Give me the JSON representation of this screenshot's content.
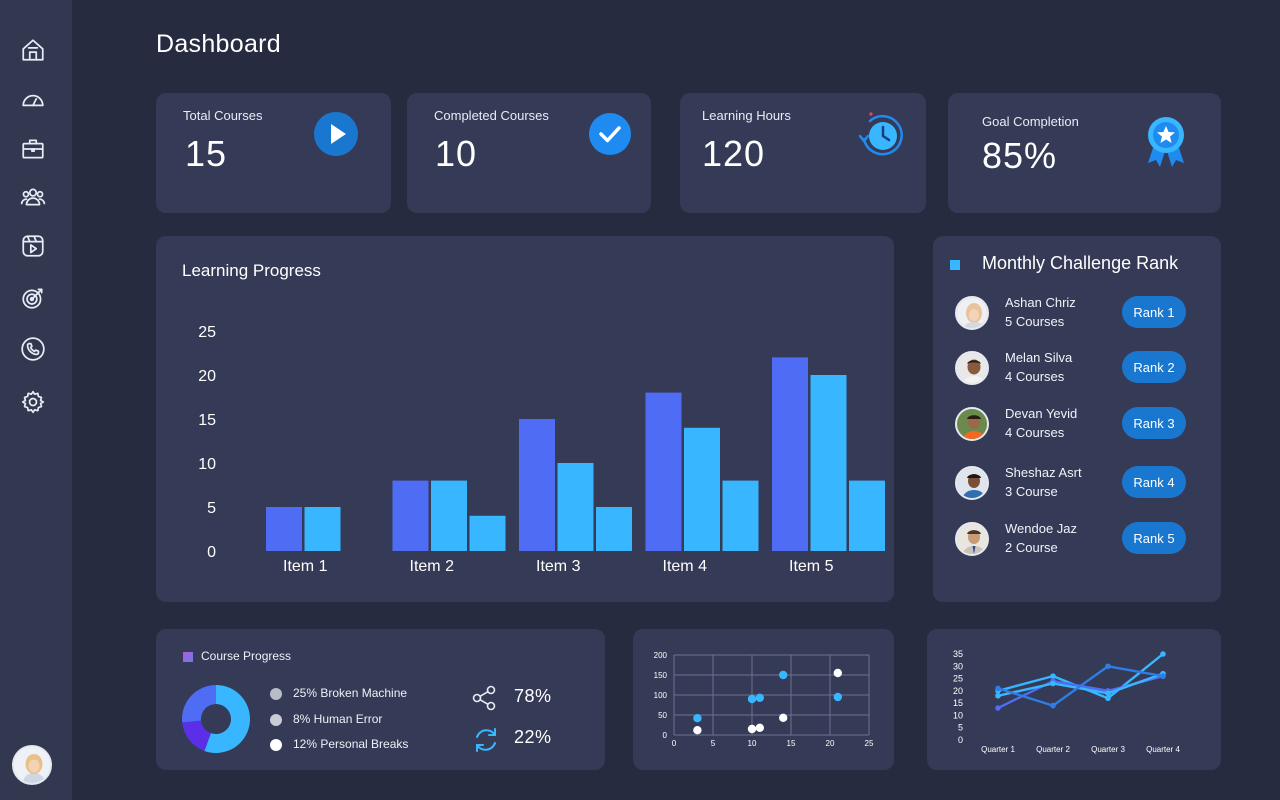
{
  "page": {
    "title": "Dashboard"
  },
  "sidebar": {
    "items": [
      {
        "icon": "home-icon"
      },
      {
        "icon": "speedometer-icon"
      },
      {
        "icon": "briefcase-icon"
      },
      {
        "icon": "users-icon"
      },
      {
        "icon": "video-play-icon"
      },
      {
        "icon": "target-icon"
      },
      {
        "icon": "phone-icon"
      },
      {
        "icon": "gear-icon"
      }
    ],
    "user_avatar": "avatar"
  },
  "stats": [
    {
      "label": "Total Courses",
      "value": "15",
      "icon": "play-icon"
    },
    {
      "label": "Completed Courses",
      "value": "10",
      "icon": "check-icon"
    },
    {
      "label": "Learning Hours",
      "value": "120",
      "icon": "clock-icon"
    },
    {
      "label": "Goal Completion",
      "value": "85%",
      "icon": "award-badge-icon"
    }
  ],
  "learning_progress": {
    "title": "Learning Progress"
  },
  "chart_data": [
    {
      "type": "bar",
      "title": "Learning Progress",
      "categories": [
        "Item 1",
        "Item 2",
        "Item 3",
        "Item 4",
        "Item 5"
      ],
      "series": [
        {
          "values": [
            5,
            8,
            15,
            18,
            22
          ],
          "color": "#4f6cf5"
        },
        {
          "values": [
            5,
            8,
            10,
            14,
            20
          ],
          "color": "#38b6ff"
        },
        {
          "values": [
            0,
            4,
            5,
            8,
            8
          ],
          "color": "#38b6ff"
        }
      ],
      "ylim": [
        0,
        25
      ],
      "yticks": [
        0,
        5,
        10,
        15,
        20,
        25
      ],
      "grid": false
    },
    {
      "type": "pie",
      "title": "Course Progress",
      "slices": [
        {
          "label": "25% Broken Machine",
          "value": 25,
          "color": "#38b6ff"
        },
        {
          "label": "8% Human Error",
          "value": 8,
          "color": "#5b2ee8"
        },
        {
          "label": "12% Personal Breaks",
          "value": 12,
          "color": "#4f6cf5"
        }
      ],
      "donut": true
    },
    {
      "type": "scatter",
      "xlim": [
        0,
        25
      ],
      "ylim": [
        0,
        200
      ],
      "xticks": [
        0,
        5,
        10,
        15,
        20,
        25
      ],
      "yticks": [
        0,
        50,
        100,
        150,
        200
      ],
      "grid": true,
      "series": [
        {
          "color": "#38b6ff",
          "points": [
            [
              3,
              42
            ],
            [
              10,
              90
            ],
            [
              11,
              93
            ],
            [
              14,
              150
            ],
            [
              21,
              95
            ]
          ]
        },
        {
          "color": "#ffffff",
          "points": [
            [
              3,
              12
            ],
            [
              10,
              15
            ],
            [
              11,
              18
            ],
            [
              14,
              43
            ],
            [
              21,
              155
            ]
          ]
        }
      ]
    },
    {
      "type": "line",
      "categories": [
        "Quarter 1",
        "Quarter 2",
        "Quarter 3",
        "Quarter 4"
      ],
      "ylim": [
        0,
        35
      ],
      "yticks": [
        0,
        5,
        10,
        15,
        20,
        25,
        30,
        35
      ],
      "grid": false,
      "series": [
        {
          "color": "#38b6ff",
          "values": [
            20,
            26,
            17,
            35
          ]
        },
        {
          "color": "#4f6cf5",
          "values": [
            13,
            24,
            20,
            26
          ]
        },
        {
          "color": "#38b6ff",
          "values": [
            18,
            23,
            19,
            27
          ]
        },
        {
          "color": "#2e7de6",
          "values": [
            21,
            14,
            30,
            26
          ]
        }
      ]
    }
  ],
  "monthly_rank": {
    "title": "Monthly Challenge Rank",
    "rows": [
      {
        "name": "Ashan Chriz",
        "courses": "5 Courses",
        "rank": "Rank 1"
      },
      {
        "name": "Melan Silva",
        "courses": "4 Courses",
        "rank": "Rank 2"
      },
      {
        "name": "Devan Yevid",
        "courses": "4 Courses",
        "rank": "Rank 3"
      },
      {
        "name": "Sheshaz Asrt",
        "courses": "3 Course",
        "rank": "Rank 4"
      },
      {
        "name": "Wendoe Jaz",
        "courses": "2 Course",
        "rank": "Rank 5"
      }
    ]
  },
  "course_progress": {
    "title": "Course Progress",
    "legend": [
      {
        "label": "25% Broken Machine",
        "color": "#b8bcc6"
      },
      {
        "label": "8% Human Error",
        "color": "#c9ccd3"
      },
      {
        "label": "12% Personal Breaks",
        "color": "#ffffff"
      }
    ],
    "metrics": [
      {
        "value": "78%",
        "icon": "share-icon"
      },
      {
        "value": "22%",
        "icon": "refresh-icon"
      }
    ]
  },
  "colors": {
    "background": "#262b3f",
    "sidebar": "#323850",
    "card": "#353b56",
    "accent_blue": "#38b6ff",
    "accent_indigo": "#4f6cf5",
    "button_blue": "#1a77cf"
  }
}
